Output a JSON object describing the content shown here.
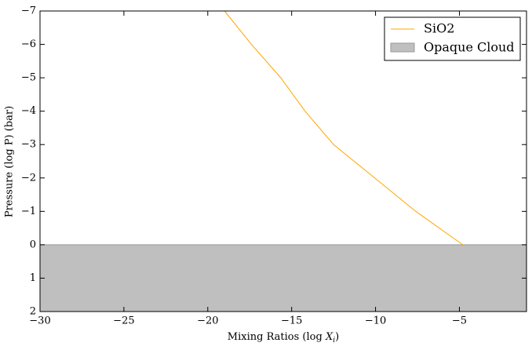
{
  "chart_data": {
    "type": "line",
    "xlabel": [
      "Mixing Ratios (log ",
      "X",
      "i",
      ")"
    ],
    "ylabel": "Pressure (log P) (bar)",
    "xlim": [
      -30,
      -1
    ],
    "ylim": [
      2,
      -7
    ],
    "y_inverted": true,
    "xticks": [
      {
        "value": -30,
        "label": "−30"
      },
      {
        "value": -25,
        "label": "−25"
      },
      {
        "value": -20,
        "label": "−20"
      },
      {
        "value": -15,
        "label": "−15"
      },
      {
        "value": -10,
        "label": "−10"
      },
      {
        "value": -5,
        "label": "−5"
      }
    ],
    "yticks": [
      {
        "value": -7,
        "label": "−7"
      },
      {
        "value": -6,
        "label": "−6"
      },
      {
        "value": -5,
        "label": "−5"
      },
      {
        "value": -4,
        "label": "−4"
      },
      {
        "value": -3,
        "label": "−3"
      },
      {
        "value": -2,
        "label": "−2"
      },
      {
        "value": -1,
        "label": "−1"
      },
      0,
      1,
      2
    ],
    "series": [
      {
        "name": "SiO2",
        "color": "#ffa500",
        "x": [
          -19,
          -17.4,
          -15.65,
          -14.2,
          -12.5,
          -10.05,
          -7.6,
          -4.8
        ],
        "y": [
          -7,
          -6,
          -5,
          -4,
          -3,
          -2,
          -1,
          0
        ]
      }
    ],
    "cloud": {
      "name": "Opaque Cloud",
      "color": "#bfbfbf",
      "top": 0,
      "bottom": 2
    },
    "legend": "upper right"
  }
}
